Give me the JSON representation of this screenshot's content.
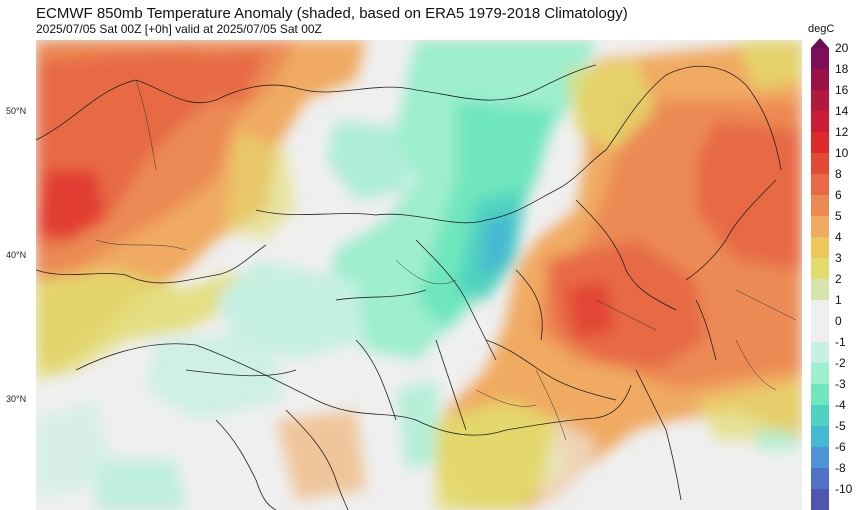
{
  "header": {
    "title": "ECMWF 850mb Temperature Anomaly (shaded, based on ERA5 1979-2018 Climatology)",
    "subtitle": "2025/07/05 Sat 00Z [+0h] valid at 2025/07/05 Sat 00Z"
  },
  "map": {
    "lat_labels": [
      "50°N",
      "40°N",
      "30°N"
    ],
    "background_color": "#efefef",
    "border_color": "#222222"
  },
  "colorbar": {
    "unit": "degC",
    "labels": [
      "20",
      "18",
      "16",
      "14",
      "12",
      "10",
      "8",
      "6",
      "5",
      "4",
      "3",
      "2",
      "1",
      "0",
      "-1",
      "-2",
      "-3",
      "-4",
      "-5",
      "-6",
      "-8",
      "-10"
    ],
    "colors": [
      "#7e0e57",
      "#9b1248",
      "#b5163d",
      "#cc1c33",
      "#de2a2a",
      "#e34a36",
      "#e76a45",
      "#ec8a55",
      "#f0aa62",
      "#ecc85e",
      "#e2dc6e",
      "#d7e4b0",
      "#efefef",
      "#efefef",
      "#c6f0e2",
      "#9eeecf",
      "#6fe6bd",
      "#4fd2c0",
      "#46b8d2",
      "#4f94d6",
      "#4d72c8",
      "#4f55b0"
    ]
  }
}
